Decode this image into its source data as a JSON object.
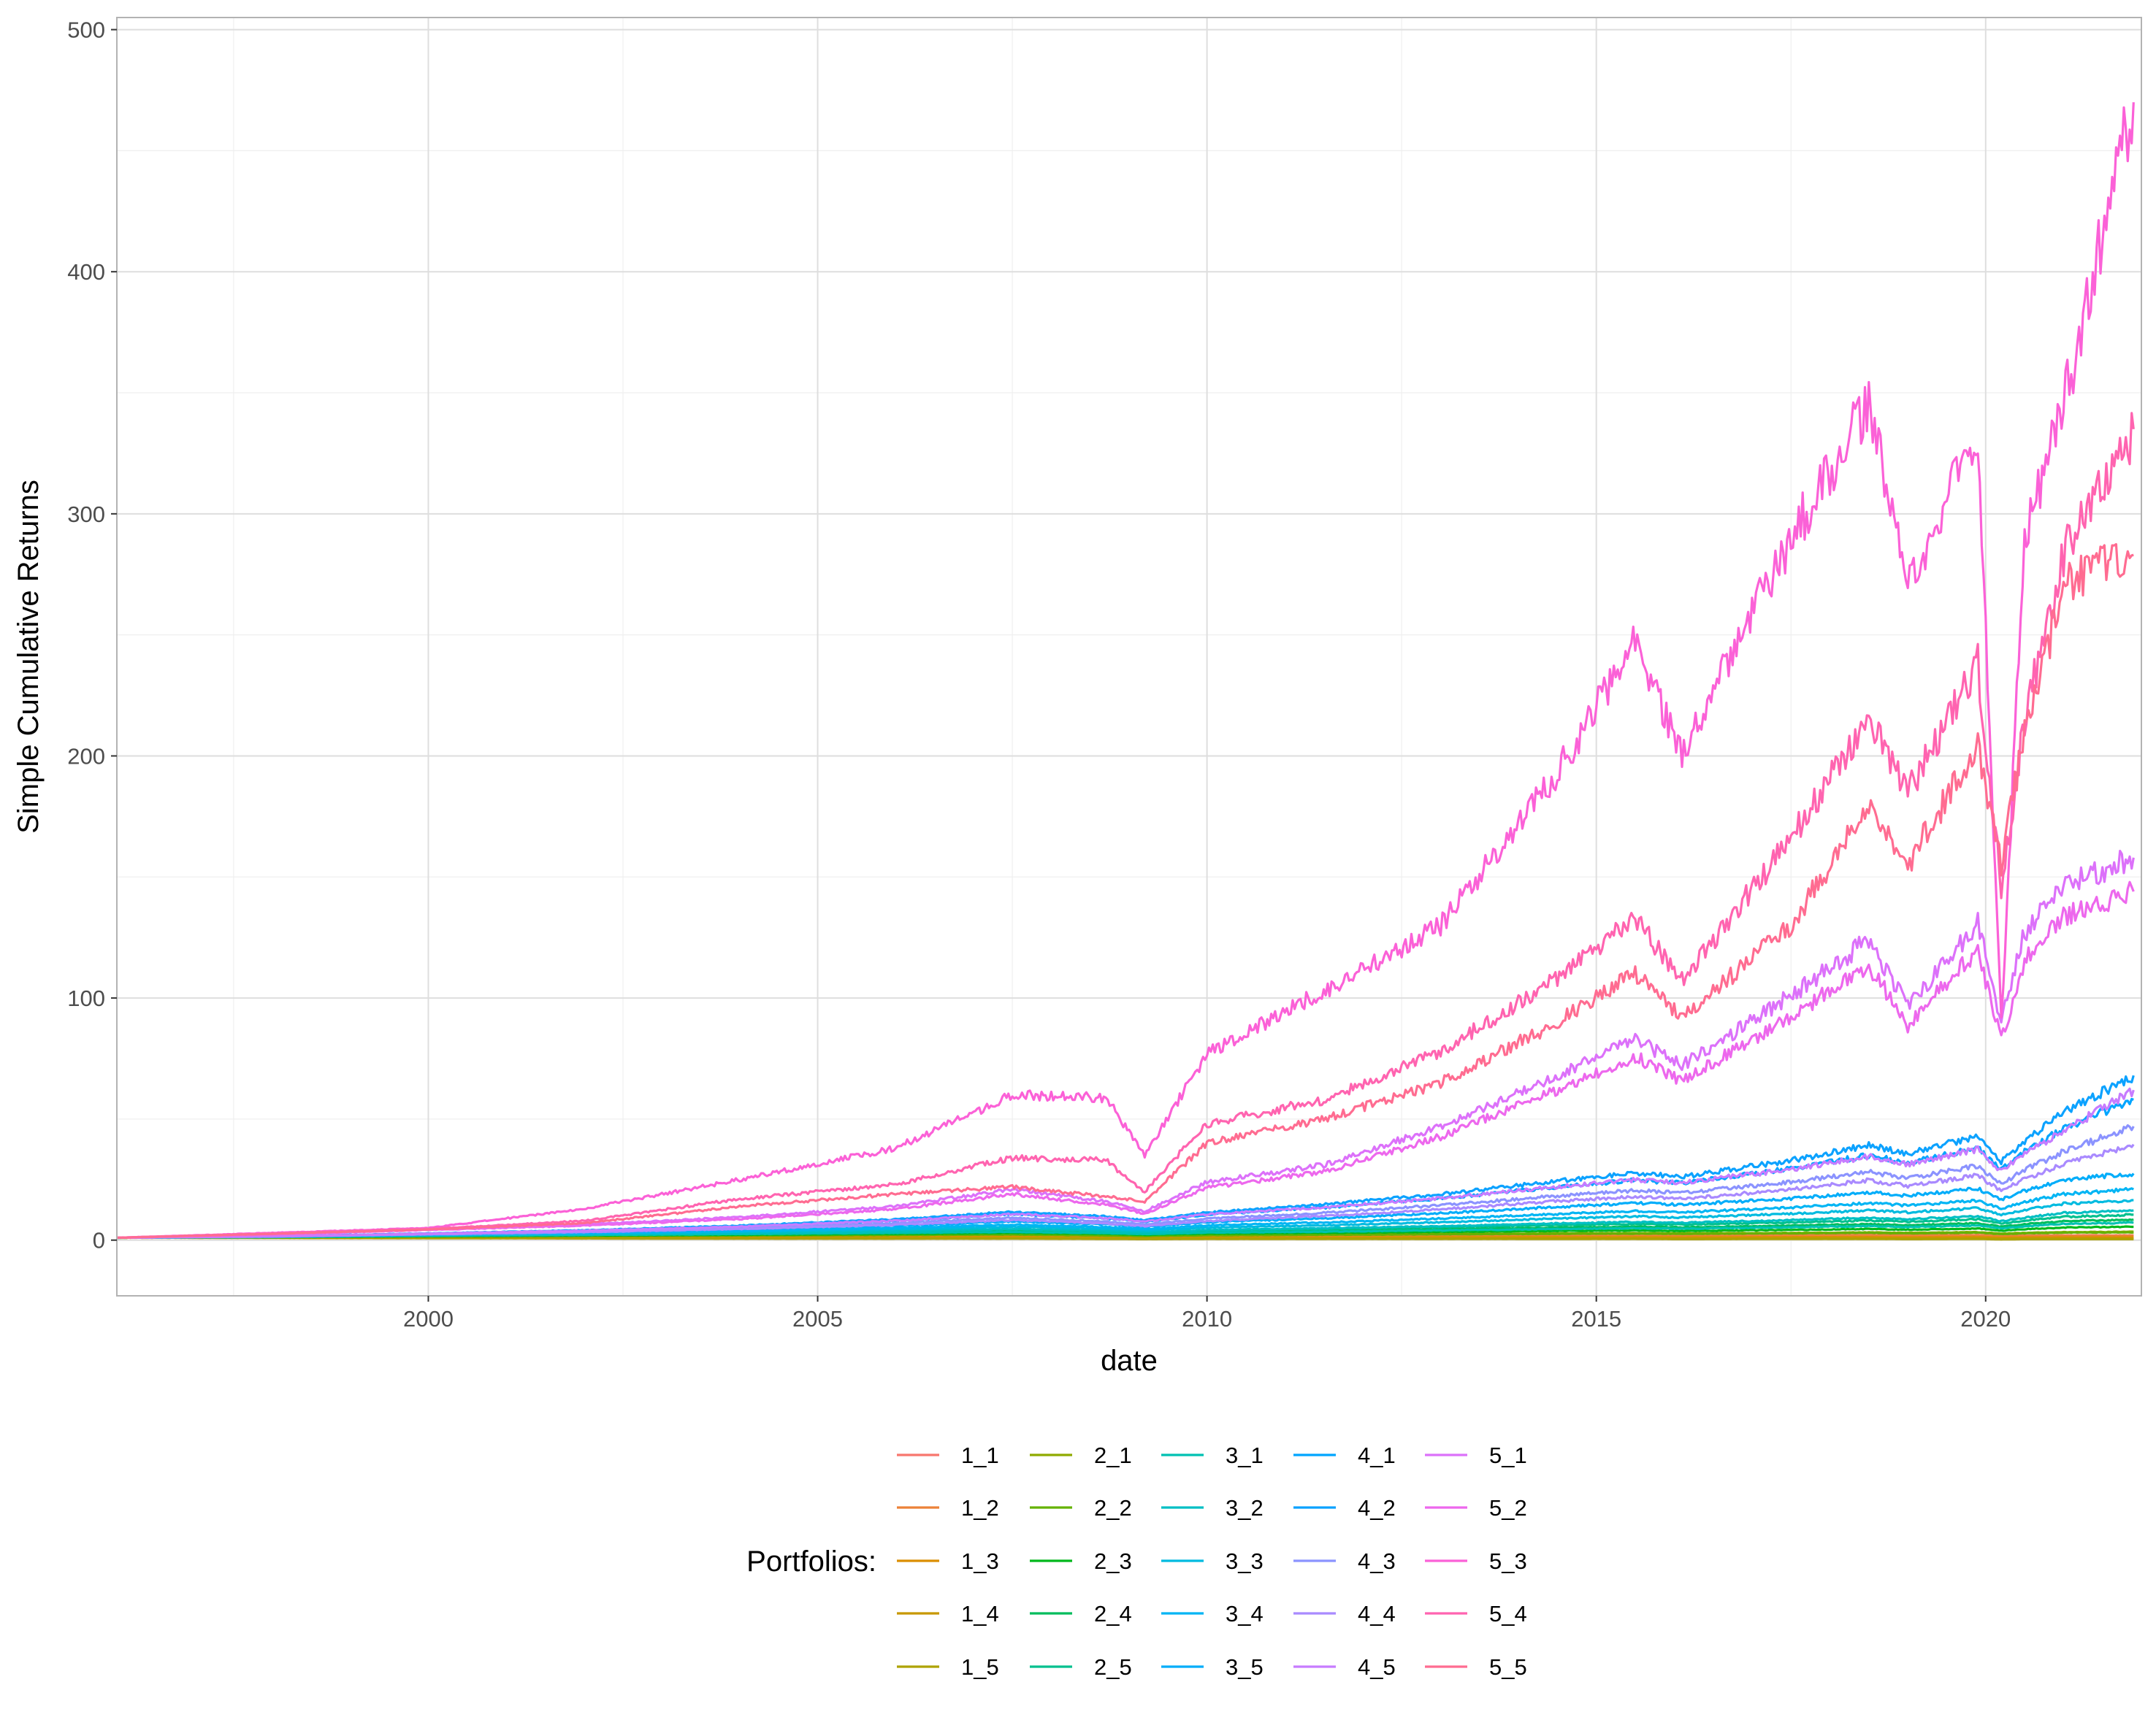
{
  "chart_data": {
    "type": "line",
    "xlabel": "date",
    "ylabel": "Simple Cumulative Returns",
    "xlim": [
      1996.0,
      2022.0
    ],
    "ylim": [
      -23,
      505
    ],
    "x_ticks": [
      2000,
      2005,
      2010,
      2015,
      2020
    ],
    "x_tick_labels": [
      "2000",
      "2005",
      "2010",
      "2015",
      "2020"
    ],
    "y_ticks": [
      0,
      100,
      200,
      300,
      400,
      500
    ],
    "y_tick_labels": [
      "0",
      "100",
      "200",
      "300",
      "400",
      "500"
    ],
    "grid": true,
    "legend": {
      "title": "Portfolios:",
      "position": "bottom",
      "columns": 5,
      "rows": 5
    },
    "x": [
      1996.0,
      1998.0,
      2000.0,
      2002.0,
      2004.0,
      2006.0,
      2007.5,
      2008.7,
      2009.2,
      2010.0,
      2011.5,
      2013.0,
      2014.5,
      2015.5,
      2016.1,
      2017.5,
      2018.5,
      2019.0,
      2019.9,
      2020.2,
      2020.5,
      2021.0,
      2021.9
    ],
    "series": [
      {
        "name": "1_1",
        "color": "#F8766D",
        "values": [
          1,
          1.2,
          1.5,
          1.6,
          1.7,
          1.8,
          1.9,
          1.7,
          1.5,
          1.7,
          1.8,
          1.9,
          2.0,
          2.0,
          1.9,
          2.0,
          2.1,
          2.0,
          2.1,
          1.8,
          1.9,
          2.0,
          2.0
        ]
      },
      {
        "name": "1_2",
        "color": "#EC8239",
        "values": [
          1,
          1.1,
          1.3,
          1.4,
          1.5,
          1.6,
          1.7,
          1.5,
          1.3,
          1.5,
          1.6,
          1.7,
          1.8,
          1.8,
          1.7,
          1.8,
          1.9,
          1.8,
          1.9,
          1.6,
          1.7,
          1.8,
          1.8
        ]
      },
      {
        "name": "1_3",
        "color": "#DB8E00",
        "values": [
          1,
          1.0,
          1.1,
          1.1,
          1.2,
          1.2,
          1.3,
          1.1,
          1.0,
          1.1,
          1.1,
          1.2,
          1.2,
          1.2,
          1.1,
          1.2,
          1.2,
          1.1,
          1.2,
          1.0,
          1.1,
          1.1,
          1.1
        ]
      },
      {
        "name": "1_4",
        "color": "#C79800",
        "values": [
          1,
          1.0,
          1.0,
          0.9,
          0.9,
          0.9,
          0.9,
          0.8,
          0.7,
          0.8,
          0.8,
          0.8,
          0.8,
          0.8,
          0.7,
          0.8,
          0.8,
          0.7,
          0.8,
          0.6,
          0.7,
          0.7,
          0.7
        ]
      },
      {
        "name": "1_5",
        "color": "#AEA200",
        "values": [
          1,
          0.9,
          0.8,
          0.7,
          0.6,
          0.6,
          0.6,
          0.5,
          0.4,
          0.5,
          0.5,
          0.5,
          0.5,
          0.5,
          0.4,
          0.5,
          0.5,
          0.4,
          0.5,
          0.3,
          0.4,
          0.4,
          0.4
        ]
      },
      {
        "name": "2_1",
        "color": "#8FAA00",
        "values": [
          1,
          1.2,
          1.6,
          1.8,
          2.0,
          2.3,
          2.5,
          2.1,
          1.8,
          2.2,
          2.4,
          2.6,
          2.8,
          2.9,
          2.8,
          3.0,
          3.2,
          3.0,
          3.3,
          2.7,
          3.0,
          3.3,
          3.5
        ]
      },
      {
        "name": "2_2",
        "color": "#64B200",
        "values": [
          1,
          1.2,
          1.5,
          1.7,
          1.9,
          2.1,
          2.3,
          1.9,
          1.7,
          2.0,
          2.2,
          2.4,
          2.6,
          2.7,
          2.6,
          2.8,
          3.0,
          2.8,
          3.1,
          2.5,
          2.8,
          3.1,
          3.2
        ]
      },
      {
        "name": "2_3",
        "color": "#00B81B",
        "values": [
          1,
          1.2,
          1.6,
          1.9,
          2.2,
          2.6,
          3.0,
          2.6,
          2.2,
          2.7,
          3.0,
          3.4,
          3.8,
          4.0,
          3.8,
          4.2,
          4.6,
          4.3,
          4.8,
          3.9,
          4.5,
          5.2,
          5.5
        ]
      },
      {
        "name": "2_4",
        "color": "#00BD5C",
        "values": [
          1,
          1.3,
          1.8,
          2.2,
          2.7,
          3.3,
          3.8,
          3.2,
          2.7,
          3.4,
          3.9,
          4.5,
          5.2,
          5.6,
          5.3,
          6.0,
          6.6,
          6.2,
          7.0,
          5.6,
          6.6,
          7.8,
          8.5
        ]
      },
      {
        "name": "2_5",
        "color": "#00C08E",
        "values": [
          1,
          1.3,
          1.9,
          2.4,
          3.0,
          3.7,
          4.4,
          3.7,
          3.1,
          3.9,
          4.5,
          5.3,
          6.2,
          6.7,
          6.4,
          7.3,
          8.1,
          7.6,
          8.6,
          6.8,
          8.1,
          9.6,
          10.5
        ]
      },
      {
        "name": "3_1",
        "color": "#00C1B2",
        "values": [
          1,
          1.3,
          1.8,
          2.1,
          2.5,
          3.0,
          3.4,
          2.9,
          2.5,
          3.1,
          3.5,
          4.0,
          4.6,
          4.9,
          4.7,
          5.3,
          5.8,
          5.4,
          6.1,
          4.9,
          5.7,
          6.7,
          7.2
        ]
      },
      {
        "name": "3_2",
        "color": "#00BFC4",
        "values": [
          1,
          1.3,
          1.9,
          2.4,
          3.0,
          3.8,
          4.6,
          3.9,
          3.3,
          4.2,
          4.9,
          5.8,
          6.9,
          7.5,
          7.2,
          8.3,
          9.3,
          8.7,
          9.9,
          7.8,
          9.3,
          11.2,
          12.3
        ]
      },
      {
        "name": "3_3",
        "color": "#00BBE0",
        "values": [
          1,
          1.4,
          2.1,
          2.7,
          3.5,
          4.5,
          5.5,
          4.7,
          4.0,
          5.2,
          6.1,
          7.4,
          8.9,
          9.8,
          9.4,
          10.9,
          12.3,
          11.5,
          13.2,
          10.4,
          12.5,
          15.1,
          16.5
        ]
      },
      {
        "name": "3_4",
        "color": "#00B5F4",
        "values": [
          1,
          1.4,
          2.2,
          2.9,
          3.9,
          5.1,
          6.4,
          5.4,
          4.6,
          6.1,
          7.3,
          8.9,
          10.8,
          12.0,
          11.5,
          13.4,
          15.3,
          14.3,
          16.4,
          12.9,
          15.7,
          19.0,
          21.0
        ]
      },
      {
        "name": "3_5",
        "color": "#00ADFA",
        "values": [
          1,
          1.5,
          2.4,
          3.3,
          4.5,
          6.0,
          7.7,
          6.5,
          5.5,
          7.4,
          9.0,
          11.1,
          13.7,
          15.3,
          14.6,
          17.2,
          19.7,
          18.4,
          21.3,
          16.7,
          20.4,
          24.9,
          27.5
        ]
      },
      {
        "name": "4_1",
        "color": "#00A5FF",
        "values": [
          1,
          1.6,
          2.7,
          3.9,
          5.6,
          8.0,
          10.8,
          9.0,
          7.6,
          10.5,
          13.4,
          17.2,
          22.0,
          24.8,
          23.6,
          29.5,
          35.0,
          31.8,
          38.0,
          29.0,
          36.5,
          46.0,
          58.0
        ]
      },
      {
        "name": "4_2",
        "color": "#0CA2FF",
        "values": [
          1,
          1.6,
          2.8,
          4.1,
          6.0,
          8.6,
          11.7,
          9.8,
          8.2,
          11.4,
          14.7,
          19.0,
          24.4,
          27.6,
          26.2,
          32.9,
          39.2,
          35.6,
          43.0,
          32.5,
          41.0,
          52.5,
          68.0
        ]
      },
      {
        "name": "4_3",
        "color": "#8B93FF",
        "values": [
          1,
          1.5,
          2.5,
          3.5,
          5.0,
          7.0,
          9.3,
          7.7,
          6.5,
          8.9,
          11.3,
          14.4,
          18.3,
          20.5,
          19.5,
          24.0,
          28.3,
          25.6,
          30.6,
          23.2,
          29.0,
          36.5,
          47.0
        ]
      },
      {
        "name": "4_4",
        "color": "#A98AFF",
        "values": [
          1,
          1.5,
          2.4,
          3.3,
          4.6,
          6.3,
          8.3,
          6.9,
          5.8,
          7.9,
          10.0,
          12.7,
          16.1,
          18.0,
          17.1,
          21.0,
          24.7,
          22.4,
          26.7,
          20.3,
          25.2,
          31.5,
          39.5
        ]
      },
      {
        "name": "4_5",
        "color": "#C77CFF",
        "values": [
          1,
          1.6,
          2.7,
          3.9,
          5.6,
          8.0,
          10.8,
          9.1,
          7.7,
          10.6,
          13.5,
          17.3,
          22.1,
          24.9,
          23.7,
          29.2,
          34.5,
          31.3,
          37.5,
          28.5,
          35.7,
          45.0,
          62.0
        ]
      },
      {
        "name": "5_1",
        "color": "#DC71FA",
        "values": [
          1,
          2.5,
          4.5,
          6.5,
          9.5,
          14.0,
          21.0,
          16.0,
          12.0,
          24.0,
          31.0,
          47.0,
          68.0,
          83.0,
          72.0,
          101.0,
          124.0,
          97.0,
          131.0,
          90.0,
          127.0,
          146.0,
          158.0
        ]
      },
      {
        "name": "5_2",
        "color": "#ED68ED",
        "values": [
          1,
          2.3,
          4.2,
          6.0,
          8.7,
          12.8,
          19.0,
          14.5,
          10.9,
          21.7,
          28.2,
          42.7,
          62.0,
          75.8,
          65.6,
          92.5,
          113.5,
          88.7,
          119.8,
          82.0,
          116.0,
          133.5,
          144.0
        ]
      },
      {
        "name": "5_3",
        "color": "#FB61D7",
        "values": [
          1,
          3.0,
          5.0,
          13.0,
          25.0,
          38.0,
          60.0,
          59.0,
          35.0,
          77.0,
          103.0,
          130.0,
          193.0,
          248.0,
          201.0,
          290.0,
          346.0,
          270.0,
          335.0,
          89.0,
          290.0,
          345.0,
          470.0
        ]
      },
      {
        "name": "5_4",
        "color": "#FF64B0",
        "values": [
          1,
          2.7,
          4.6,
          8.0,
          17.0,
          23.0,
          34.0,
          33.0,
          20.0,
          48.0,
          58.0,
          78.0,
          108.0,
          133.0,
          107.0,
          166.0,
          216.0,
          185.0,
          238.0,
          145.0,
          215.0,
          283.0,
          335.0
        ]
      },
      {
        "name": "5_5",
        "color": "#FF6C91",
        "values": [
          1,
          2.6,
          4.4,
          7.0,
          14.0,
          19.0,
          22.0,
          18.0,
          16.0,
          40.0,
          50.0,
          65.0,
          90.0,
          110.0,
          92.0,
          130.0,
          180.0,
          155.0,
          205.0,
          155.0,
          210.0,
          270.0,
          283.0
        ]
      }
    ]
  }
}
